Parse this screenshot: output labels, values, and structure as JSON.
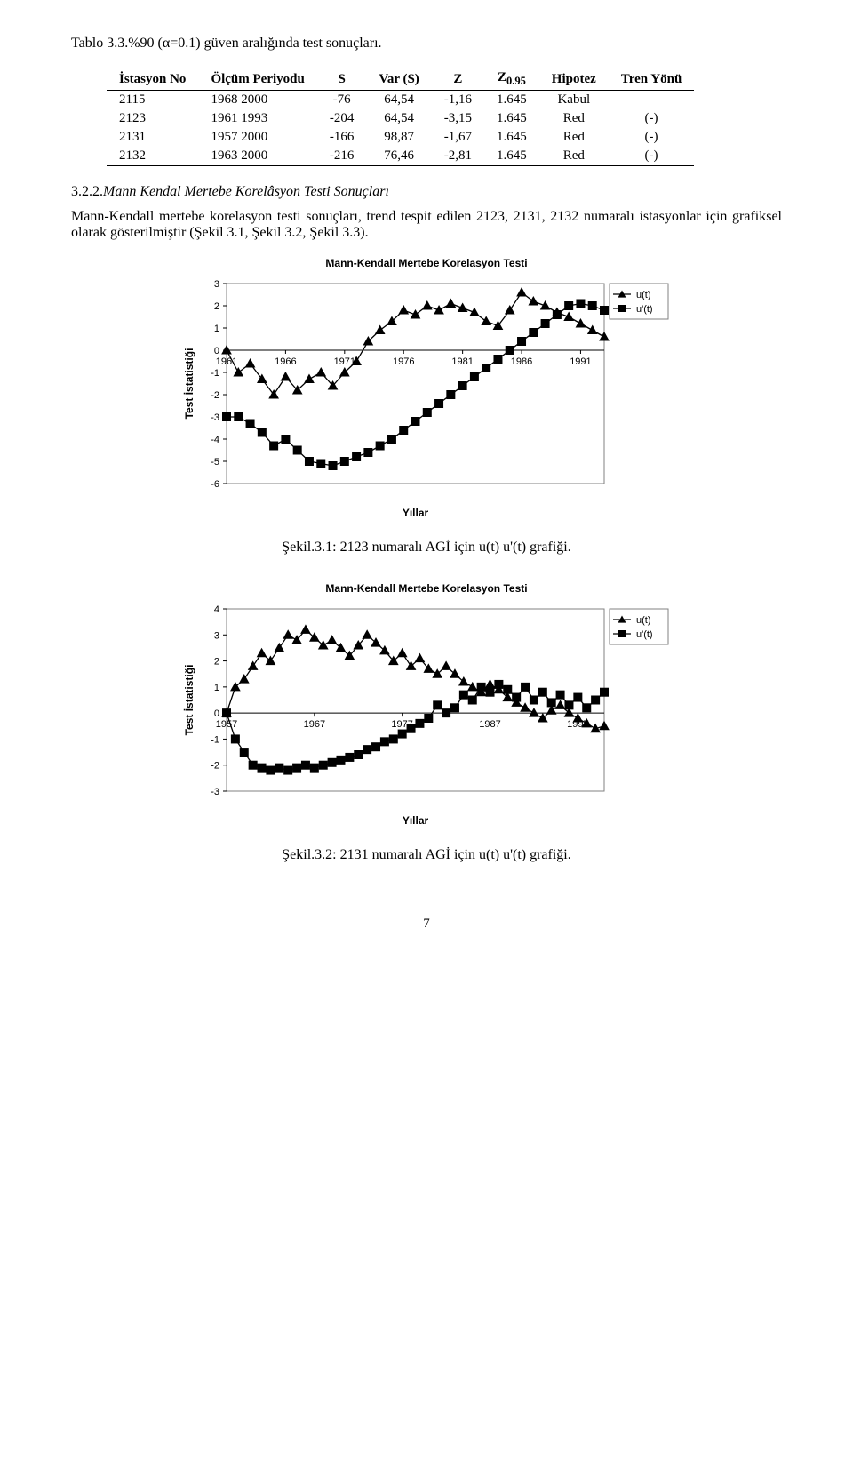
{
  "table_caption": "Tablo 3.3.%90 (α=0.1) güven aralığında test sonuçları.",
  "table": {
    "headers": [
      "İstasyon No",
      "Ölçüm Periyodu",
      "S",
      "Var (S)",
      "Z",
      "Z",
      "Hipotez",
      "Tren Yönü"
    ],
    "z_sub": "0.95",
    "rows": [
      {
        "no": "2115",
        "period": "1968 2000",
        "s": "-76",
        "var": "64,54",
        "z": "-1,16",
        "z095": "1.645",
        "hip": "Kabul",
        "yon": ""
      },
      {
        "no": "2123",
        "period": "1961 1993",
        "s": "-204",
        "var": "64,54",
        "z": "-3,15",
        "z095": "1.645",
        "hip": "Red",
        "yon": "(-)"
      },
      {
        "no": "2131",
        "period": "1957 2000",
        "s": "-166",
        "var": "98,87",
        "z": "-1,67",
        "z095": "1.645",
        "hip": "Red",
        "yon": "(-)"
      },
      {
        "no": "2132",
        "period": "1963 2000",
        "s": "-216",
        "var": "76,46",
        "z": "-2,81",
        "z095": "1.645",
        "hip": "Red",
        "yon": "(-)"
      }
    ]
  },
  "section_heading_num": "3.2.2.",
  "section_heading_text": "Mann Kendal Mertebe Korelâsyon Testi Sonuçları",
  "body_para": "Mann-Kendall mertebe korelasyon testi sonuçları, trend tespit edilen 2123, 2131, 2132 numaralı istasyonlar için grafiksel olarak gösterilmiştir (Şekil 3.1, Şekil 3.2, Şekil 3.3).",
  "chart_common": {
    "title": "Mann-Kendall Mertebe Korelasyon Testi",
    "x_axis_label": "Yıllar",
    "y_axis_label": "Test İstatistiği",
    "legend": [
      {
        "label": "u(t)",
        "marker": "triangle",
        "stroke": "#000000",
        "fill": "#000000"
      },
      {
        "label": "u'(t)",
        "marker": "square",
        "stroke": "#000000",
        "fill": "#000000"
      }
    ],
    "border_color": "#808080",
    "background": "#ffffff",
    "line_color": "#000000",
    "font_family": "Arial",
    "axis_fontsize": 11,
    "label_fontsize": 12,
    "title_fontsize": 12,
    "line_width": 1.3,
    "marker_size": 5
  },
  "chart1": {
    "caption": "Şekil.3.1: 2123 numaralı AGİ için u(t) u'(t) grafiği.",
    "x_min": 1961,
    "x_max": 1993,
    "x_ticks": [
      1961,
      1966,
      1971,
      1976,
      1981,
      1986,
      1991
    ],
    "y_min": -6,
    "y_max": 3,
    "y_ticks": [
      -6,
      -5,
      -4,
      -3,
      -2,
      -1,
      0,
      1,
      2,
      3
    ],
    "u": [
      0.0,
      -1.0,
      -0.6,
      -1.3,
      -2.0,
      -1.2,
      -1.8,
      -1.3,
      -1.0,
      -1.6,
      -1.0,
      -0.5,
      0.4,
      0.9,
      1.3,
      1.8,
      1.6,
      2.0,
      1.8,
      2.1,
      1.9,
      1.7,
      1.3,
      1.1,
      1.8,
      2.6,
      2.2,
      2.0,
      1.7,
      1.5,
      1.2,
      0.9,
      0.6
    ],
    "u_prime": [
      -3.0,
      -3.0,
      -3.3,
      -3.7,
      -4.3,
      -4.0,
      -4.5,
      -5.0,
      -5.1,
      -5.2,
      -5.0,
      -4.8,
      -4.6,
      -4.3,
      -4.0,
      -3.6,
      -3.2,
      -2.8,
      -2.4,
      -2.0,
      -1.6,
      -1.2,
      -0.8,
      -0.4,
      0.0,
      0.4,
      0.8,
      1.2,
      1.6,
      2.0,
      2.1,
      2.0,
      1.8
    ]
  },
  "chart2": {
    "caption": "Şekil.3.2: 2131 numaralı AGİ için u(t) u'(t) grafiği.",
    "x_min": 1957,
    "x_max": 2000,
    "x_ticks": [
      1957,
      1967,
      1977,
      1987,
      1997
    ],
    "y_min": -3,
    "y_max": 4,
    "y_ticks": [
      -3,
      -2,
      -1,
      0,
      1,
      2,
      3,
      4
    ],
    "u": [
      0.0,
      1.0,
      1.3,
      1.8,
      2.3,
      2.0,
      2.5,
      3.0,
      2.8,
      3.2,
      2.9,
      2.6,
      2.8,
      2.5,
      2.2,
      2.6,
      3.0,
      2.7,
      2.4,
      2.0,
      2.3,
      1.8,
      2.1,
      1.7,
      1.5,
      1.8,
      1.5,
      1.2,
      1.0,
      0.8,
      1.1,
      0.9,
      0.6,
      0.4,
      0.2,
      0.0,
      -0.2,
      0.1,
      0.3,
      0.0,
      -0.2,
      -0.4,
      -0.6,
      -0.5
    ],
    "u_prime": [
      0.0,
      -1.0,
      -1.5,
      -2.0,
      -2.1,
      -2.2,
      -2.1,
      -2.2,
      -2.1,
      -2.0,
      -2.1,
      -2.0,
      -1.9,
      -1.8,
      -1.7,
      -1.6,
      -1.4,
      -1.3,
      -1.1,
      -1.0,
      -0.8,
      -0.6,
      -0.4,
      -0.2,
      0.3,
      0.0,
      0.2,
      0.7,
      0.5,
      1.0,
      0.8,
      1.1,
      0.9,
      0.6,
      1.0,
      0.5,
      0.8,
      0.4,
      0.7,
      0.3,
      0.6,
      0.2,
      0.5,
      0.8
    ]
  },
  "page_number": "7"
}
